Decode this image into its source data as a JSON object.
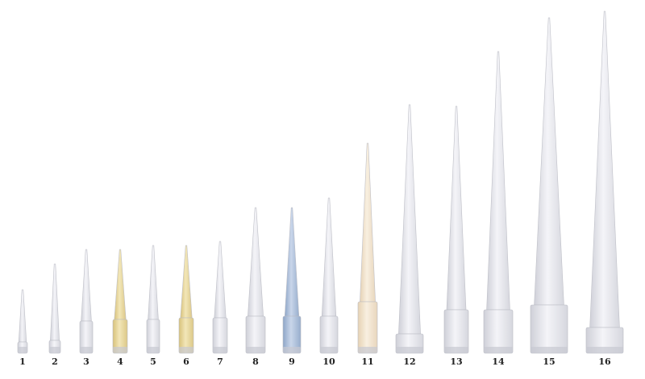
{
  "labels": [
    "1",
    "2",
    "3",
    "4",
    "5",
    "6",
    "7",
    "8",
    "9",
    "10",
    "11",
    "12",
    "13",
    "14",
    "15",
    "16"
  ]
}
